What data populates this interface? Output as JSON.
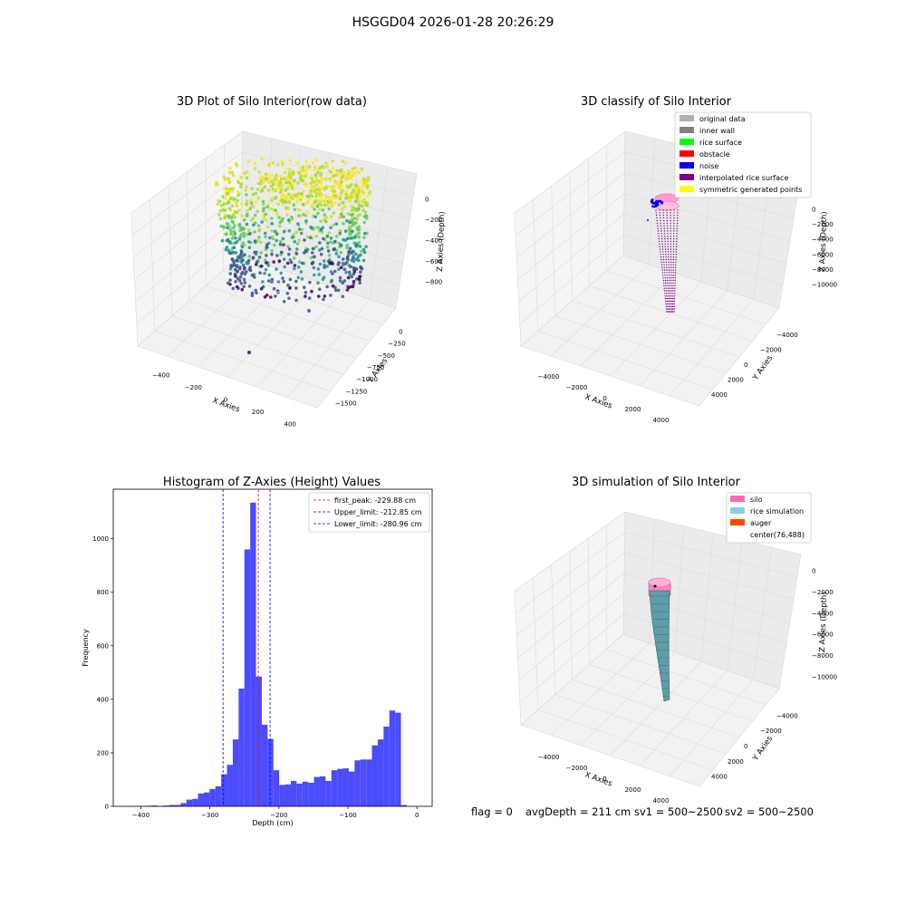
{
  "suptitle": "HSGGD04 2026-01-28 20:26:29",
  "footer": {
    "flag": "flag = 0",
    "avg_depth": "avgDepth = 211 cm",
    "sv1": "sv1 = 500~2500",
    "sv2": "sv2 = 500~2500"
  },
  "colors": {
    "hist_bar": "#4b4bff",
    "peak_line": "#ff0000",
    "limit_line": "#0000ff",
    "silo": "#ff69b4",
    "rice_simulation": "#87ceeb",
    "auger": "#ff4500",
    "original_data": "#b0b0b0",
    "inner_wall": "#808080",
    "rice_surface": "#00ff00",
    "obstacle": "#ff0000",
    "noise": "#0000ff",
    "interpolated_rice_surface": "#800080",
    "symmetric_generated_points": "#ffff00"
  },
  "chart_data": [
    {
      "type": "scatter",
      "projection": "3d",
      "title": "3D Plot of Silo Interior(row data)",
      "xlabel": "X Axies",
      "ylabel": "Y Axies",
      "zlabel": "Z Axies (Depth)",
      "xticks": [
        "−400",
        "−200",
        "0",
        "200",
        "400"
      ],
      "yticks": [
        "0",
        "−250",
        "−500",
        "−750",
        "−1000",
        "−1250",
        "−1500"
      ],
      "zticks": [
        "0",
        "−200",
        "−400",
        "−600",
        "−800"
      ],
      "colormap": "viridis",
      "grid": true
    },
    {
      "type": "scatter",
      "projection": "3d",
      "title": "3D classify of Silo Interior",
      "xlabel": "X Axies",
      "ylabel": "Y Axies",
      "zlabel": "Z Axies (Depth)",
      "xticks": [
        "−4000",
        "−2000",
        "0",
        "2000",
        "4000"
      ],
      "yticks": [
        "−4000",
        "−2000",
        "0",
        "2000",
        "4000"
      ],
      "zticks": [
        "0",
        "−2000",
        "−4000",
        "−6000",
        "−8000",
        "−10000"
      ],
      "legend_position": "top-right",
      "legend": [
        "original data",
        "inner wall",
        "rice surface",
        "obstacle",
        "noise",
        "interpolated rice surface",
        "symmetric generated points"
      ],
      "grid": true
    },
    {
      "type": "bar",
      "title": "Histogram of Z-Axies (Height) Values",
      "xlabel": "Depth (cm)",
      "ylabel": "Frequency",
      "xlim": [
        -440,
        22
      ],
      "ylim": [
        0,
        1185
      ],
      "xticks": [
        -400,
        -300,
        -200,
        -100,
        0
      ],
      "xtick_labels": [
        "−400",
        "−300",
        "−200",
        "−100",
        "0"
      ],
      "yticks": [
        0,
        200,
        400,
        600,
        800,
        1000
      ],
      "yticks_labels": [
        "0",
        "200",
        "400",
        "600",
        "800",
        "1000"
      ],
      "bin_start": -418,
      "bin_width": 8.4,
      "values": [
        1,
        1,
        1,
        2,
        3,
        1,
        3,
        5,
        5,
        12,
        25,
        28,
        48,
        52,
        65,
        75,
        120,
        155,
        250,
        440,
        960,
        1135,
        485,
        305,
        252,
        135,
        80,
        82,
        95,
        85,
        92,
        88,
        110,
        112,
        95,
        135,
        140,
        142,
        130,
        172,
        175,
        175,
        228,
        250,
        298,
        358,
        350,
        5
      ],
      "vlines": [
        {
          "value": -229.88,
          "label": "first_peak: -229.88 cm",
          "style": "dashed-red"
        },
        {
          "value": -212.85,
          "label": "Upper_limit: -212.85 cm",
          "style": "dashed-blue"
        },
        {
          "value": -280.96,
          "label": "Lower_limit: -280.96 cm",
          "style": "dashed-blue"
        }
      ],
      "legend_position": "top-right",
      "grid": false
    },
    {
      "type": "surface",
      "projection": "3d",
      "title": "3D simulation of Silo Interior",
      "xlabel": "X Axies",
      "ylabel": "Y Axies",
      "zlabel": "Z Axies (Depth)",
      "xticks": [
        "−4000",
        "−2000",
        "0",
        "2000",
        "4000"
      ],
      "yticks": [
        "−4000",
        "−2000",
        "0",
        "2000",
        "4000"
      ],
      "zticks": [
        "0",
        "−2000",
        "−4000",
        "−6000",
        "−8000",
        "−10000"
      ],
      "legend_position": "top-right",
      "legend": [
        "silo",
        "rice simulation",
        "auger",
        "center(76,488)"
      ],
      "grid": true
    }
  ]
}
